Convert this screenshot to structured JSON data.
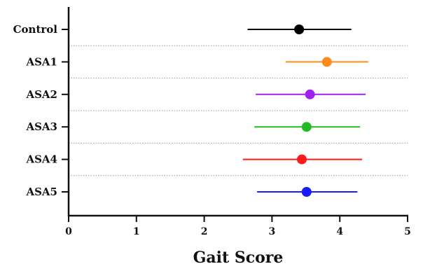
{
  "chart_data": {
    "type": "forest",
    "xlabel": "Gait Score",
    "xlim": [
      0,
      5
    ],
    "xticks": [
      0,
      1,
      2,
      3,
      4,
      5
    ],
    "grid": "dotted separators between categories",
    "rows": [
      {
        "label": "Control",
        "mean": 3.4,
        "low": 2.64,
        "high": 4.17,
        "color": "#000000"
      },
      {
        "label": "ASA1",
        "mean": 3.81,
        "low": 3.2,
        "high": 4.42,
        "color": "#ff8c1a"
      },
      {
        "label": "ASA2",
        "mean": 3.56,
        "low": 2.76,
        "high": 4.38,
        "color": "#a020f0"
      },
      {
        "label": "ASA3",
        "mean": 3.51,
        "low": 2.74,
        "high": 4.3,
        "color": "#22bb22"
      },
      {
        "label": "ASA4",
        "mean": 3.44,
        "low": 2.57,
        "high": 4.33,
        "color": "#ff1a1a"
      },
      {
        "label": "ASA5",
        "mean": 3.51,
        "low": 2.78,
        "high": 4.26,
        "color": "#1a1aff"
      }
    ]
  }
}
